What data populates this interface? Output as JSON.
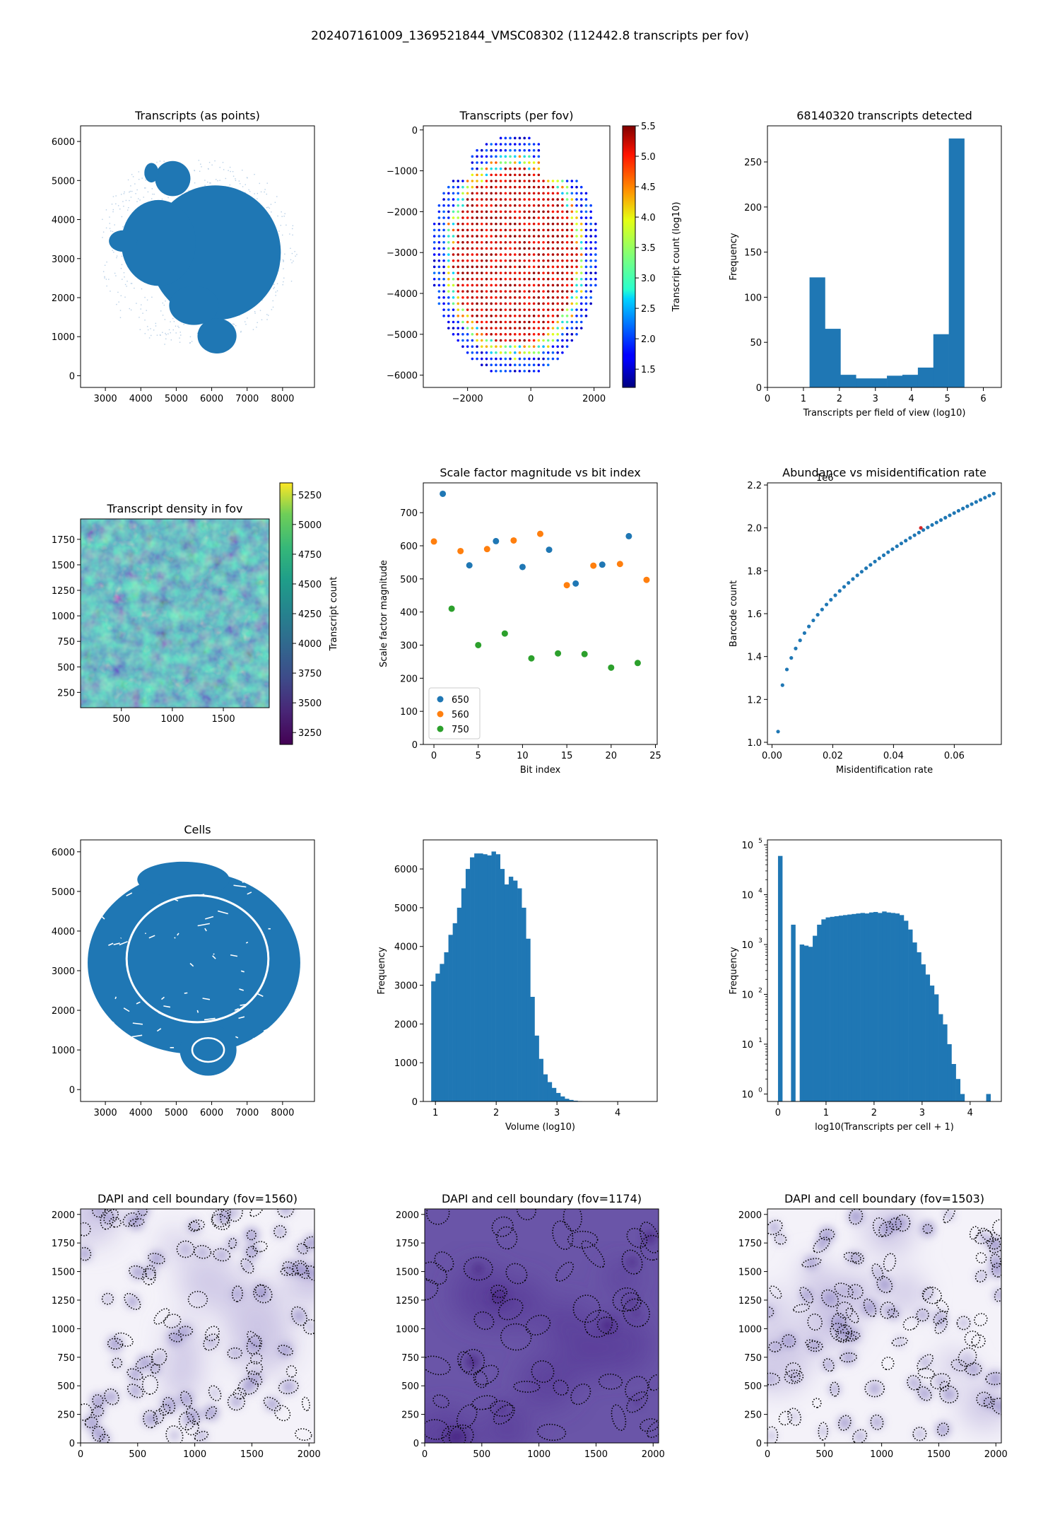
{
  "figure": {
    "suptitle": "202407161009_1369521844_VMSC08302 (112442.8 transcripts per fov)"
  },
  "colors": {
    "blue": "#1f77b4",
    "orange": "#ff7f0e",
    "green": "#2ca02c",
    "dapi": "#4b3a8f"
  },
  "chart_data": [
    {
      "id": "p1",
      "type": "scatter",
      "title": "Transcripts (as points)",
      "xlim": [
        2300,
        8900
      ],
      "ylim": [
        -300,
        6400
      ],
      "xticks": [
        3000,
        4000,
        5000,
        6000,
        7000,
        8000
      ],
      "yticks": [
        0,
        1000,
        2000,
        3000,
        4000,
        5000,
        6000
      ],
      "shape": "dense-blob",
      "color": "#1f77b4"
    },
    {
      "id": "p2",
      "type": "scatter",
      "title": "Transcripts (per fov)",
      "xlim": [
        -3400,
        2500
      ],
      "ylim": [
        -6300,
        100
      ],
      "xticks": [
        -2000,
        0,
        2000
      ],
      "yticks": [
        0,
        -1000,
        -2000,
        -3000,
        -4000,
        -5000,
        -6000
      ],
      "colorbar": {
        "label": "Transcript count (log10)",
        "range": [
          1.2,
          5.5
        ],
        "ticks": [
          "1.5",
          "2.0",
          "2.5",
          "3.0",
          "3.5",
          "4.0",
          "4.5",
          "5.0",
          "5.5"
        ],
        "cmap": "jet"
      },
      "grid_spacing": 150,
      "extent": {
        "x": [
          -3200,
          2300
        ],
        "y": [
          -6000,
          -200
        ]
      }
    },
    {
      "id": "p3",
      "type": "bar",
      "title": "68140320 transcripts detected",
      "xlabel": "Transcripts per field of view (log10)",
      "ylabel": "Frequency",
      "xlim": [
        0,
        6.5
      ],
      "ylim": [
        0,
        290
      ],
      "xticks": [
        0,
        1,
        2,
        3,
        4,
        5,
        6
      ],
      "yticks": [
        0,
        50,
        100,
        150,
        200,
        250
      ],
      "bin_edges": [
        1.17,
        1.6,
        2.03,
        2.46,
        2.89,
        3.32,
        3.75,
        4.18,
        4.61,
        5.04,
        5.47
      ],
      "values": [
        122,
        65,
        14,
        10,
        10,
        13,
        14,
        22,
        59,
        276
      ]
    },
    {
      "id": "p4",
      "type": "heatmap",
      "title": "Transcript density in fov",
      "xlim": [
        100,
        1950
      ],
      "ylim": [
        100,
        1950
      ],
      "xticks": [
        500,
        1000,
        1500
      ],
      "yticks": [
        250,
        500,
        750,
        1000,
        1250,
        1500,
        1750
      ],
      "colorbar": {
        "label": "Transcript count",
        "range": [
          3150,
          5350
        ],
        "ticks": [
          "3250",
          "3500",
          "3750",
          "4000",
          "4250",
          "4500",
          "4750",
          "5000",
          "5250"
        ],
        "cmap": "viridis"
      }
    },
    {
      "id": "p5",
      "type": "scatter",
      "title": "Scale factor magnitude vs bit index",
      "xlabel": "Bit index",
      "ylabel": "Scale factor magnitude",
      "xlim": [
        -1.2,
        25.2
      ],
      "ylim": [
        0,
        790
      ],
      "xticks": [
        0,
        5,
        10,
        15,
        20,
        25
      ],
      "yticks": [
        0,
        100,
        200,
        300,
        400,
        500,
        600,
        700
      ],
      "legend": {
        "placement": "lower-left"
      },
      "series": [
        {
          "name": "650",
          "color": "#1f77b4",
          "points": [
            [
              1,
              757
            ],
            [
              4,
              541
            ],
            [
              7,
              614
            ],
            [
              10,
              536
            ],
            [
              13,
              588
            ],
            [
              16,
              486
            ],
            [
              19,
              543
            ],
            [
              22,
              629
            ]
          ]
        },
        {
          "name": "560",
          "color": "#ff7f0e",
          "points": [
            [
              0,
              613
            ],
            [
              3,
              584
            ],
            [
              6,
              590
            ],
            [
              9,
              616
            ],
            [
              12,
              636
            ],
            [
              15,
              481
            ],
            [
              18,
              540
            ],
            [
              21,
              545
            ],
            [
              24,
              497
            ]
          ]
        },
        {
          "name": "750",
          "color": "#2ca02c",
          "points": [
            [
              2,
              410
            ],
            [
              5,
              300
            ],
            [
              8,
              335
            ],
            [
              11,
              260
            ],
            [
              14,
              275
            ],
            [
              17,
              273
            ],
            [
              20,
              232
            ],
            [
              23,
              246
            ]
          ]
        }
      ]
    },
    {
      "id": "p6",
      "type": "scatter",
      "title": "Abundance vs misidentification rate",
      "xlabel": "Misidentification rate",
      "ylabel": "Barcode count",
      "exponent": "1e6",
      "xlim": [
        -0.0015,
        0.0755
      ],
      "ylim": [
        0.99,
        2.21
      ],
      "xticks": [
        0.0,
        0.02,
        0.04,
        0.06
      ],
      "xticklabels": [
        "0.00",
        "0.02",
        "0.04",
        "0.06"
      ],
      "yticks": [
        1.0,
        1.2,
        1.4,
        1.6,
        1.8,
        2.0,
        2.2
      ],
      "curve": {
        "x_start": 0.002,
        "x_end": 0.073,
        "y_start": 1.05,
        "y_end": 2.16,
        "n": 50
      },
      "color": "#1f77b4"
    },
    {
      "id": "p7",
      "type": "scatter",
      "title": "Cells",
      "xlim": [
        2300,
        8900
      ],
      "ylim": [
        -300,
        6300
      ],
      "xticks": [
        3000,
        4000,
        5000,
        6000,
        7000,
        8000
      ],
      "yticks": [
        0,
        1000,
        2000,
        3000,
        4000,
        5000,
        6000
      ],
      "shape": "textured-blob",
      "color": "#1f77b4"
    },
    {
      "id": "p8",
      "type": "bar",
      "title": "",
      "xlabel": "Volume (log10)",
      "ylabel": "Frequency",
      "xlim": [
        0.8,
        4.65
      ],
      "ylim": [
        0,
        6750
      ],
      "xticks": [
        1,
        2,
        3,
        4
      ],
      "yticks": [
        0,
        1000,
        2000,
        3000,
        4000,
        5000,
        6000
      ],
      "bin_start": 0.93,
      "bin_width": 0.0709,
      "values": [
        3100,
        3300,
        3550,
        3850,
        4300,
        4600,
        5000,
        5500,
        6000,
        6300,
        6400,
        6400,
        6380,
        6350,
        6450,
        6380,
        6000,
        5600,
        5800,
        5700,
        5500,
        5000,
        4200,
        2700,
        1700,
        1100,
        700,
        500,
        350,
        220,
        130,
        70,
        40,
        20,
        10,
        5
      ]
    },
    {
      "id": "p9",
      "type": "bar",
      "title": "",
      "xlabel": "log10(Transcripts per cell + 1)",
      "ylabel": "Frequency",
      "yscale": "log",
      "xlim": [
        -0.22,
        4.65
      ],
      "ylim_log10": [
        -0.15,
        5.1
      ],
      "xticks": [
        0,
        1,
        2,
        3,
        4
      ],
      "yticks_log10": [
        0,
        1,
        2,
        3,
        4,
        5
      ],
      "bin_start": 0.0,
      "bin_width": 0.0903,
      "values": [
        60000,
        0,
        0,
        2500,
        0,
        1000,
        950,
        900,
        1500,
        2500,
        3200,
        3500,
        3600,
        3700,
        3800,
        3900,
        4000,
        4100,
        4200,
        4300,
        4200,
        4400,
        4500,
        4300,
        4600,
        4400,
        4300,
        4200,
        3900,
        3000,
        2000,
        1100,
        700,
        400,
        250,
        150,
        100,
        40,
        25,
        10,
        4,
        2,
        1,
        0,
        0,
        0,
        0,
        0,
        1
      ]
    },
    {
      "id": "p10",
      "type": "heatmap",
      "title": "DAPI and cell boundary (fov=1560)",
      "xlim": [
        0,
        2048
      ],
      "ylim": [
        0,
        2048
      ],
      "xticks": [
        0,
        500,
        1000,
        1500,
        2000
      ],
      "yticks": [
        0,
        250,
        500,
        750,
        1000,
        1250,
        1500,
        1750,
        2000
      ],
      "background": "light"
    },
    {
      "id": "p11",
      "type": "heatmap",
      "title": "DAPI and cell boundary (fov=1174)",
      "xlim": [
        0,
        2048
      ],
      "ylim": [
        0,
        2048
      ],
      "xticks": [
        0,
        500,
        1000,
        1500,
        2000
      ],
      "yticks": [
        0,
        250,
        500,
        750,
        1000,
        1250,
        1500,
        1750,
        2000
      ],
      "background": "dark"
    },
    {
      "id": "p12",
      "type": "heatmap",
      "title": "DAPI and cell boundary (fov=1503)",
      "xlim": [
        0,
        2048
      ],
      "ylim": [
        0,
        2048
      ],
      "xticks": [
        0,
        500,
        1000,
        1500,
        2000
      ],
      "yticks": [
        0,
        250,
        500,
        750,
        1000,
        1250,
        1500,
        1750,
        2000
      ],
      "background": "light"
    }
  ]
}
